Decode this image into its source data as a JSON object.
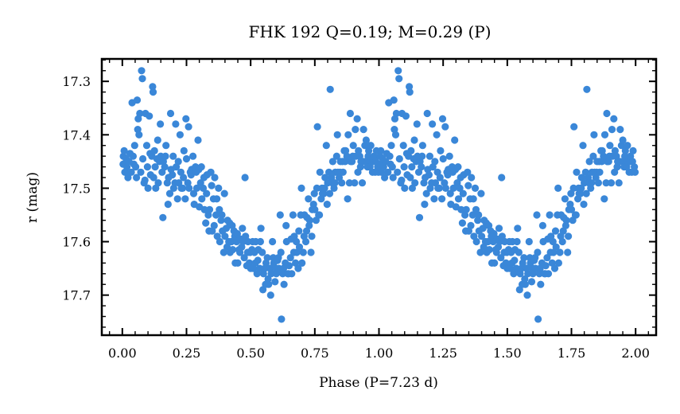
{
  "chart_data": {
    "type": "scatter",
    "title": "FHK 192  Q=0.19; M=0.29 (P)",
    "xlabel": "Phase (P=7.23 d)",
    "ylabel": "r (mag)",
    "xlim": [
      -0.08,
      2.08
    ],
    "ylim": [
      17.775,
      17.258
    ],
    "y_inverted": true,
    "x_ticks": [
      "0.00",
      "0.25",
      "0.50",
      "0.75",
      "1.00",
      "1.25",
      "1.50",
      "1.75",
      "2.00"
    ],
    "x_tick_values": [
      0,
      0.25,
      0.5,
      0.75,
      1.0,
      1.25,
      1.5,
      1.75,
      2.0
    ],
    "y_ticks": [
      "17.3",
      "17.4",
      "17.5",
      "17.6",
      "17.7"
    ],
    "y_tick_values": [
      17.3,
      17.4,
      17.5,
      17.6,
      17.7
    ],
    "grid": false,
    "marker_color": "#3a87d8",
    "series": [
      {
        "phase": [
          0.003,
          0.004,
          0.007,
          0.01,
          0.015,
          0.018,
          0.022,
          0.026,
          0.03,
          0.035,
          0.038,
          0.042,
          0.045,
          0.048,
          0.052,
          0.055,
          0.058,
          0.06,
          0.062,
          0.065,
          0.068,
          0.072,
          0.075,
          0.078,
          0.08,
          0.085,
          0.088,
          0.09,
          0.095,
          0.098,
          0.1,
          0.105,
          0.108,
          0.11,
          0.115,
          0.118,
          0.12,
          0.122,
          0.125,
          0.128,
          0.13,
          0.135,
          0.138,
          0.14,
          0.145,
          0.148,
          0.15,
          0.155,
          0.158,
          0.16,
          0.165,
          0.168,
          0.17,
          0.175,
          0.178,
          0.18,
          0.185,
          0.188,
          0.19,
          0.195,
          0.198,
          0.2,
          0.205,
          0.208,
          0.21,
          0.215,
          0.218,
          0.22,
          0.225,
          0.228,
          0.23,
          0.235,
          0.238,
          0.24,
          0.245,
          0.248,
          0.25,
          0.255,
          0.258,
          0.26,
          0.265,
          0.268,
          0.27,
          0.275,
          0.278,
          0.28,
          0.285,
          0.288,
          0.29,
          0.295,
          0.298,
          0.3,
          0.305,
          0.308,
          0.31,
          0.315,
          0.318,
          0.32,
          0.325,
          0.328,
          0.33,
          0.335,
          0.338,
          0.34,
          0.345,
          0.348,
          0.35,
          0.355,
          0.358,
          0.36,
          0.365,
          0.368,
          0.37,
          0.375,
          0.378,
          0.38,
          0.385,
          0.388,
          0.39,
          0.395,
          0.398,
          0.4,
          0.405,
          0.408,
          0.41,
          0.415,
          0.418,
          0.42,
          0.425,
          0.428,
          0.43,
          0.435,
          0.438,
          0.44,
          0.445,
          0.448,
          0.45,
          0.455,
          0.458,
          0.46,
          0.465,
          0.468,
          0.47,
          0.475,
          0.478,
          0.48,
          0.485,
          0.488,
          0.49,
          0.495,
          0.498,
          0.5,
          0.505,
          0.508,
          0.51,
          0.515,
          0.518,
          0.52,
          0.525,
          0.528,
          0.53,
          0.535,
          0.538,
          0.54,
          0.545,
          0.548,
          0.55,
          0.555,
          0.558,
          0.56,
          0.565,
          0.568,
          0.57,
          0.575,
          0.578,
          0.58,
          0.585,
          0.588,
          0.59,
          0.595,
          0.598,
          0.6,
          0.605,
          0.608,
          0.61,
          0.615,
          0.618,
          0.62,
          0.625,
          0.628,
          0.63,
          0.635,
          0.638,
          0.64,
          0.645,
          0.648,
          0.65,
          0.655,
          0.658,
          0.66,
          0.665,
          0.668,
          0.67,
          0.675,
          0.678,
          0.68,
          0.685,
          0.688,
          0.69,
          0.695,
          0.698,
          0.7,
          0.705,
          0.708,
          0.71,
          0.715,
          0.718,
          0.72,
          0.725,
          0.728,
          0.73,
          0.735,
          0.738,
          0.74,
          0.745,
          0.748,
          0.75,
          0.755,
          0.758,
          0.76,
          0.765,
          0.768,
          0.77,
          0.775,
          0.778,
          0.78,
          0.785,
          0.788,
          0.79,
          0.795,
          0.798,
          0.8,
          0.805,
          0.808,
          0.81,
          0.815,
          0.818,
          0.82,
          0.825,
          0.828,
          0.83,
          0.835,
          0.838,
          0.84,
          0.845,
          0.848,
          0.85,
          0.855,
          0.858,
          0.86,
          0.865,
          0.868,
          0.87,
          0.875,
          0.878,
          0.88,
          0.885,
          0.888,
          0.89,
          0.895,
          0.898,
          0.9,
          0.905,
          0.908,
          0.91,
          0.915,
          0.918,
          0.92,
          0.925,
          0.928,
          0.93,
          0.935,
          0.938,
          0.94,
          0.945,
          0.948,
          0.95,
          0.955,
          0.958,
          0.96,
          0.965,
          0.968,
          0.97,
          0.975,
          0.978,
          0.98,
          0.985,
          0.988,
          0.99,
          0.995,
          0.998
        ],
        "mag": [
          17.455,
          17.44,
          17.43,
          17.47,
          17.445,
          17.46,
          17.48,
          17.45,
          17.435,
          17.47,
          17.34,
          17.44,
          17.455,
          17.42,
          17.46,
          17.48,
          17.335,
          17.39,
          17.37,
          17.4,
          17.36,
          17.47,
          17.28,
          17.295,
          17.445,
          17.49,
          17.485,
          17.36,
          17.42,
          17.46,
          17.5,
          17.365,
          17.435,
          17.475,
          17.44,
          17.31,
          17.32,
          17.48,
          17.43,
          17.46,
          17.5,
          17.445,
          17.41,
          17.49,
          17.45,
          17.38,
          17.44,
          17.47,
          17.555,
          17.45,
          17.46,
          17.44,
          17.42,
          17.49,
          17.53,
          17.48,
          17.51,
          17.36,
          17.465,
          17.475,
          17.44,
          17.5,
          17.49,
          17.38,
          17.46,
          17.52,
          17.45,
          17.49,
          17.4,
          17.47,
          17.5,
          17.5,
          17.48,
          17.43,
          17.52,
          17.37,
          17.445,
          17.49,
          17.385,
          17.5,
          17.47,
          17.475,
          17.465,
          17.44,
          17.51,
          17.53,
          17.46,
          17.47,
          17.5,
          17.41,
          17.465,
          17.535,
          17.49,
          17.46,
          17.52,
          17.5,
          17.48,
          17.54,
          17.565,
          17.51,
          17.475,
          17.55,
          17.58,
          17.54,
          17.47,
          17.495,
          17.58,
          17.52,
          17.57,
          17.48,
          17.55,
          17.52,
          17.59,
          17.5,
          17.54,
          17.6,
          17.56,
          17.55,
          17.58,
          17.62,
          17.51,
          17.59,
          17.575,
          17.61,
          17.56,
          17.6,
          17.565,
          17.62,
          17.6,
          17.57,
          17.615,
          17.58,
          17.59,
          17.64,
          17.6,
          17.585,
          17.64,
          17.615,
          17.62,
          17.595,
          17.61,
          17.575,
          17.6,
          17.63,
          17.48,
          17.59,
          17.645,
          17.62,
          17.6,
          17.64,
          17.62,
          17.65,
          17.615,
          17.6,
          17.65,
          17.62,
          17.64,
          17.6,
          17.66,
          17.635,
          17.615,
          17.65,
          17.6,
          17.575,
          17.62,
          17.69,
          17.66,
          17.65,
          17.68,
          17.64,
          17.63,
          17.67,
          17.68,
          17.65,
          17.7,
          17.66,
          17.6,
          17.63,
          17.64,
          17.675,
          17.65,
          17.66,
          17.635,
          17.63,
          17.65,
          17.55,
          17.62,
          17.745,
          17.66,
          17.65,
          17.68,
          17.64,
          17.57,
          17.6,
          17.66,
          17.66,
          17.645,
          17.63,
          17.595,
          17.66,
          17.55,
          17.62,
          17.59,
          17.64,
          17.6,
          17.62,
          17.65,
          17.58,
          17.61,
          17.55,
          17.5,
          17.64,
          17.62,
          17.59,
          17.55,
          17.6,
          17.58,
          17.555,
          17.52,
          17.57,
          17.56,
          17.62,
          17.59,
          17.54,
          17.53,
          17.51,
          17.54,
          17.56,
          17.5,
          17.385,
          17.55,
          17.55,
          17.47,
          17.52,
          17.5,
          17.51,
          17.51,
          17.5,
          17.48,
          17.42,
          17.53,
          17.49,
          17.47,
          17.51,
          17.315,
          17.48,
          17.49,
          17.45,
          17.5,
          17.49,
          17.47,
          17.44,
          17.4,
          17.47,
          17.48,
          17.47,
          17.45,
          17.49,
          17.45,
          17.47,
          17.43,
          17.45,
          17.43,
          17.44,
          17.52,
          17.4,
          17.49,
          17.36,
          17.45,
          17.45,
          17.44,
          17.42,
          17.49,
          17.39,
          17.44,
          17.37,
          17.47,
          17.43,
          17.44,
          17.46,
          17.45,
          17.49,
          17.45,
          17.39,
          17.42,
          17.45,
          17.41,
          17.46,
          17.44,
          17.43,
          17.46,
          17.42,
          17.45,
          17.47,
          17.45,
          17.44,
          17.47,
          17.45,
          17.43,
          17.46,
          17.47,
          17.48,
          17.44,
          17.45,
          17.46
        ],
        "phase_offset_for_second_cycle": 1.0
      }
    ]
  }
}
